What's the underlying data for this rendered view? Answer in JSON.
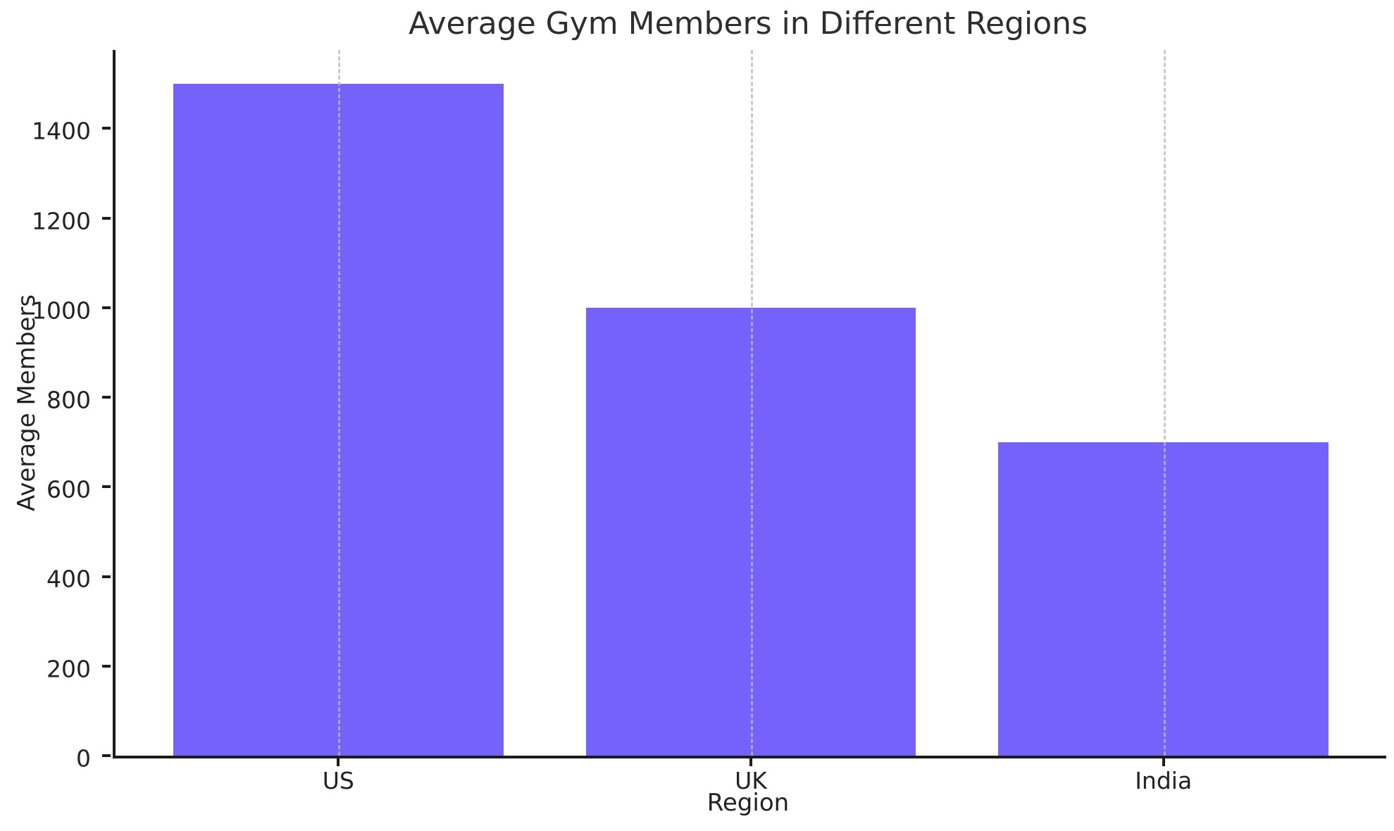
{
  "chart_data": {
    "type": "bar",
    "title": "Average Gym Members in Different Regions",
    "xlabel": "Region",
    "ylabel": "Average Members",
    "categories": [
      "US",
      "UK",
      "India"
    ],
    "values": [
      1500,
      1000,
      700
    ],
    "yticks": [
      0,
      200,
      400,
      600,
      800,
      1000,
      1200,
      1400
    ],
    "ylim": [
      0,
      1575
    ],
    "xlim": [
      -0.54,
      2.54
    ],
    "bar_width_units": 0.8,
    "bar_color": "#7562fa",
    "grid": "vertical-dashed-at-bar-centers",
    "gridline_color": "#bababa",
    "spine_color": "#1c1c1c",
    "legend": "none"
  }
}
